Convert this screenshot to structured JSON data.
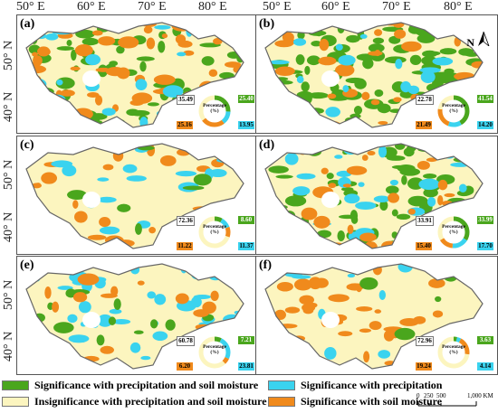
{
  "axes": {
    "longitudes": [
      "50° E",
      "60° E",
      "70° E",
      "80° E",
      "50° E",
      "60° E",
      "70° E",
      "80° E"
    ],
    "latitudes": [
      "50° N",
      "40° N"
    ]
  },
  "north_label": "N",
  "donut_center_text": "Percentage\n(%)",
  "colors": {
    "both": "#4aa61d",
    "precip": "#3ad3ef",
    "insig": "#fcf5bf",
    "soil": "#f08a1c"
  },
  "panels": [
    {
      "label": "(a)",
      "insig": "35.49",
      "both": "25.40",
      "soil": "25.16",
      "precip": "13.95"
    },
    {
      "label": "(b)",
      "insig": "22.78",
      "both": "41.54",
      "soil": "21.49",
      "precip": "14.20"
    },
    {
      "label": "(c)",
      "insig": "72.36",
      "both": "8.60",
      "soil": "11.22",
      "precip": "11.37"
    },
    {
      "label": "(d)",
      "insig": "33.91",
      "both": "33.99",
      "soil": "15.40",
      "precip": "17.70"
    },
    {
      "label": "(e)",
      "insig": "60.78",
      "both": "7.21",
      "soil": "6.20",
      "precip": "23.81"
    },
    {
      "label": "(f)",
      "insig": "72.96",
      "both": "3.63",
      "soil": "19.24",
      "precip": "4.14"
    }
  ],
  "legend": {
    "both": "Significance with precipitation and soil moisture",
    "precip": "Significance with precipitation",
    "insig": "Insignificance with precipitation and soil moisture",
    "soil": "Significance with soil moisture"
  },
  "scale_bar": {
    "ticks": [
      "0",
      "250",
      "500",
      "1,000 KM"
    ]
  }
}
